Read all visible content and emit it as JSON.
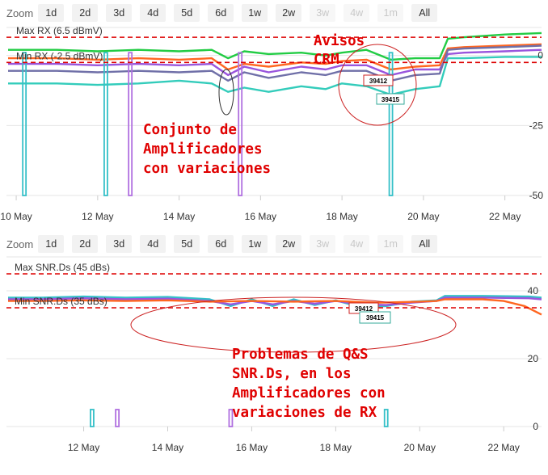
{
  "zoom": {
    "label": "Zoom",
    "buttons": [
      {
        "label": "1d",
        "enabled": true
      },
      {
        "label": "2d",
        "enabled": true
      },
      {
        "label": "3d",
        "enabled": true
      },
      {
        "label": "4d",
        "enabled": true
      },
      {
        "label": "5d",
        "enabled": true
      },
      {
        "label": "6d",
        "enabled": true
      },
      {
        "label": "1w",
        "enabled": true
      },
      {
        "label": "2w",
        "enabled": true
      },
      {
        "label": "3w",
        "enabled": false
      },
      {
        "label": "4w",
        "enabled": false
      },
      {
        "label": "1m",
        "enabled": false
      },
      {
        "label": "All",
        "enabled": true
      }
    ]
  },
  "colors": {
    "green": "#22cc44",
    "orange": "#ff6620",
    "purple": "#9955dd",
    "slate": "#7070a8",
    "teal": "#33ccbb",
    "vteal": "#35c0c8",
    "vpurple": "#b070e0",
    "threshold": "#dd0000",
    "note": "#e00000"
  },
  "chart_data": [
    {
      "type": "line",
      "x_ticks": [
        "10 May",
        "12 May",
        "14 May",
        "16 May",
        "18 May",
        "20 May",
        "22 May"
      ],
      "x_range": [
        "9.8 May",
        "22.9 May"
      ],
      "y_ticks": [
        0,
        -25,
        -50
      ],
      "ylim": [
        -50,
        10
      ],
      "thresholds": [
        {
          "label": "Max RX (6.5 dBmV)",
          "value": 6.5
        },
        {
          "label": "Min RX (-2.5 dBmV)",
          "value": -2.5
        }
      ],
      "series": [
        {
          "color": "green",
          "x": [
            9.8,
            11,
            12,
            13,
            14,
            14.8,
            15.2,
            15.6,
            16.2,
            17,
            17.6,
            18,
            18.6,
            19.2,
            19.8,
            20.4,
            20.6,
            21,
            22,
            22.9
          ],
          "y": [
            2,
            2,
            1.5,
            2,
            1.5,
            2,
            -1,
            1.5,
            0.5,
            1,
            0,
            1,
            2,
            -1.5,
            -1,
            -1,
            6,
            6.5,
            7.5,
            8
          ]
        },
        {
          "color": "orange",
          "x": [
            9.8,
            11,
            12,
            13,
            14,
            14.8,
            15.2,
            15.6,
            16.2,
            17,
            17.6,
            18,
            18.6,
            19.2,
            19.8,
            20.4,
            20.6,
            21,
            22,
            22.9
          ],
          "y": [
            -1,
            -1,
            -1.5,
            -1,
            -1.5,
            -1,
            -5,
            -3,
            -4,
            -2.5,
            -3,
            -2,
            -1.5,
            -5,
            -4,
            -3.5,
            2.5,
            3,
            3.5,
            4
          ]
        },
        {
          "color": "purple",
          "x": [
            9.8,
            11,
            12,
            13,
            14,
            14.8,
            15.2,
            15.6,
            16.2,
            17,
            17.6,
            18,
            18.6,
            19.2,
            19.8,
            20.4,
            20.6,
            21,
            22,
            22.9
          ],
          "y": [
            -3,
            -3,
            -3.5,
            -3,
            -3.5,
            -3,
            -7,
            -4,
            -6,
            -4,
            -5,
            -3.5,
            -3.5,
            -7,
            -5,
            -5,
            0.5,
            1,
            1.5,
            2
          ]
        },
        {
          "color": "slate",
          "x": [
            9.8,
            11,
            12,
            13,
            14,
            14.8,
            15.2,
            15.6,
            16.2,
            17,
            17.6,
            18,
            18.6,
            19.2,
            19.8,
            20.4,
            20.6,
            21,
            22,
            22.9
          ],
          "y": [
            -5.5,
            -5.5,
            -6,
            -5.5,
            -6,
            -5.5,
            -9,
            -6,
            -8,
            -6,
            -7,
            -5.5,
            -5.5,
            -9,
            -7,
            -6.5,
            2,
            2.5,
            3,
            3.5
          ]
        },
        {
          "color": "teal",
          "x": [
            9.8,
            11,
            12,
            13,
            14,
            14.8,
            15.2,
            15.6,
            16.2,
            17,
            17.6,
            18,
            18.6,
            19.2,
            19.8,
            20.4,
            20.6,
            21,
            22,
            22.9
          ],
          "y": [
            -10,
            -10,
            -10.5,
            -10,
            -9,
            -10,
            -13,
            -11.5,
            -13,
            -11,
            -12,
            -10,
            -11,
            -14,
            -12,
            -11,
            -1,
            -1,
            -0.5,
            -0.5
          ]
        }
      ],
      "drops": [
        {
          "x": 10.2,
          "color": "vteal"
        },
        {
          "x": 12.2,
          "color": "vteal"
        },
        {
          "x": 12.8,
          "color": "vpurple"
        },
        {
          "x": 15.5,
          "color": "vpurple"
        },
        {
          "x": 19.2,
          "color": "vteal"
        }
      ],
      "tags": [
        "39412",
        "39415"
      ]
    },
    {
      "type": "line",
      "x_ticks": [
        "12 May",
        "14 May",
        "16 May",
        "18 May",
        "20 May",
        "22 May"
      ],
      "x_range": [
        "10.2 May",
        "22.9 May"
      ],
      "y_ticks": [
        40,
        20,
        0
      ],
      "ylim": [
        0,
        50
      ],
      "thresholds": [
        {
          "label": "Max SNR.Ds (45 dBs)",
          "value": 45
        },
        {
          "label": "Min SNR.Ds (35 dBs)",
          "value": 35
        }
      ],
      "series": [
        {
          "color": "vteal",
          "x": [
            10.2,
            11,
            12,
            13,
            14,
            15,
            15.5,
            16,
            16.5,
            17,
            17.5,
            18,
            18.6,
            19.2,
            19.8,
            20.4,
            20.6,
            21.5,
            22.6,
            22.9
          ],
          "y": [
            38,
            38,
            38.3,
            38,
            38.2,
            37.5,
            35.5,
            37.5,
            35.5,
            37.5,
            35.8,
            37.2,
            35.2,
            35.5,
            36.8,
            37.2,
            38.5,
            38.5,
            38.3,
            38
          ]
        },
        {
          "color": "purple",
          "x": [
            10.2,
            11,
            12,
            13,
            14,
            15,
            15.5,
            16,
            16.5,
            17,
            17.5,
            18,
            18.6,
            19.2,
            19.8,
            20.4,
            20.6,
            21.5,
            22.6,
            22.9
          ],
          "y": [
            37.5,
            37.5,
            37.8,
            37.5,
            37.7,
            37,
            36,
            37,
            36,
            37,
            36.2,
            37,
            36,
            35.8,
            36.5,
            37,
            38,
            38,
            37.8,
            37.5
          ]
        },
        {
          "color": "orange",
          "x": [
            10.2,
            11,
            12,
            13,
            14,
            15,
            16,
            17,
            18,
            19,
            20,
            20.4,
            20.6,
            21.5,
            22,
            22.5,
            22.9
          ],
          "y": [
            37,
            37,
            37.2,
            37,
            37.2,
            36.8,
            37,
            36.8,
            37,
            36.5,
            36.8,
            37,
            37.5,
            37.5,
            37,
            35.5,
            33
          ]
        }
      ],
      "drops": [
        {
          "x": 12.2,
          "color": "vteal"
        },
        {
          "x": 12.8,
          "color": "vpurple"
        },
        {
          "x": 15.5,
          "color": "vpurple"
        },
        {
          "x": 19.2,
          "color": "vteal"
        }
      ],
      "tags": [
        "39412",
        "39415"
      ]
    }
  ],
  "annotations": {
    "avisos": [
      "Avisos",
      "CRM"
    ],
    "conjunto": [
      "Conjunto de",
      "Amplificadores",
      "con variaciones"
    ],
    "problemas": [
      "Problemas de Q&S",
      "SNR.Ds, en los",
      "Amplificadores con",
      "variaciones de RX"
    ]
  }
}
